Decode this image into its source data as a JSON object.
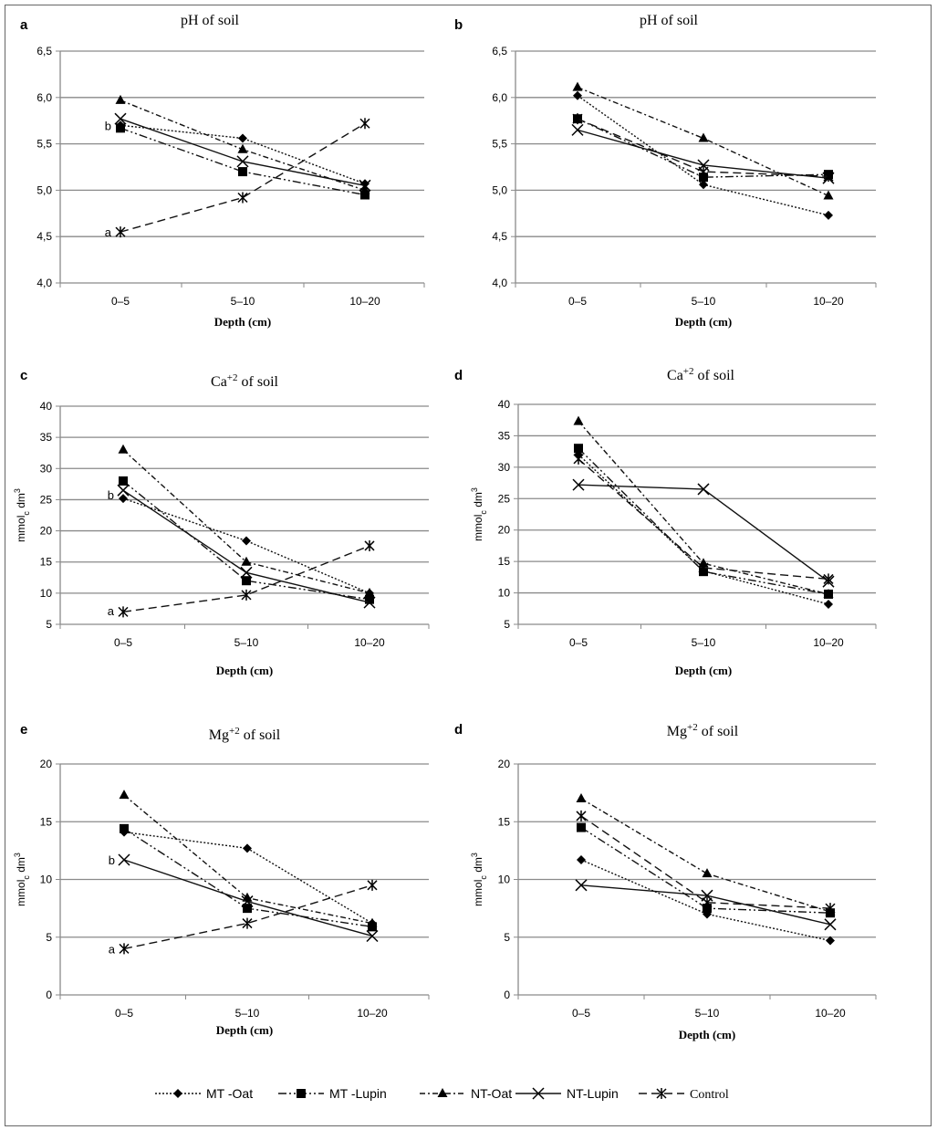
{
  "legend": [
    {
      "name": "MT -Oat",
      "marker": "diamond",
      "dash": "dotted"
    },
    {
      "name": "MT -Lupin",
      "marker": "square",
      "dash": "dash-dot-dot"
    },
    {
      "name": "NT-Oat",
      "marker": "triangle",
      "dash": "dash-dot"
    },
    {
      "name": "NT-Lupin",
      "marker": "x",
      "dash": "solid"
    },
    {
      "name": "Control",
      "marker": "asterisk",
      "dash": "dashed"
    }
  ],
  "chart_data": [
    {
      "type": "line",
      "panel_label": "a",
      "title": {
        "base": "pH of soil",
        "sup": "",
        "rest": ""
      },
      "xlabel": "Depth (cm)",
      "ylabel": null,
      "categories": [
        "0–5",
        "5–10",
        "10–20"
      ],
      "ylim": [
        4.0,
        6.5
      ],
      "yticks": [
        {
          "v": 4.0,
          "label": "4,0"
        },
        {
          "v": 4.5,
          "label": "4,5"
        },
        {
          "v": 5.0,
          "label": "5,0"
        },
        {
          "v": 5.5,
          "label": "5,5"
        },
        {
          "v": 6.0,
          "label": "6,0"
        },
        {
          "v": 6.5,
          "label": "6,5"
        }
      ],
      "grid": true,
      "series": [
        {
          "name": "MT -Oat",
          "values": [
            5.7,
            5.56,
            5.07
          ]
        },
        {
          "name": "MT -Lupin",
          "values": [
            5.67,
            5.2,
            4.95
          ]
        },
        {
          "name": "NT-Oat",
          "values": [
            5.97,
            5.44,
            5.0
          ]
        },
        {
          "name": "NT-Lupin",
          "values": [
            5.77,
            5.31,
            5.05
          ]
        },
        {
          "name": "Control",
          "values": [
            4.55,
            4.92,
            5.72
          ]
        }
      ],
      "annotations": [
        {
          "text": "b",
          "x": "0–5",
          "y": 5.7
        },
        {
          "text": "a",
          "x": "0–5",
          "y": 4.55
        }
      ]
    },
    {
      "type": "line",
      "panel_label": "b",
      "title": {
        "base": "pH of soil",
        "sup": "",
        "rest": ""
      },
      "xlabel": "Depth (cm)",
      "ylabel": null,
      "categories": [
        "0–5",
        "5–10",
        "10–20"
      ],
      "ylim": [
        4.0,
        6.5
      ],
      "yticks": [
        {
          "v": 4.0,
          "label": "4,0"
        },
        {
          "v": 4.5,
          "label": "4,5"
        },
        {
          "v": 5.0,
          "label": "5,0"
        },
        {
          "v": 5.5,
          "label": "5,5"
        },
        {
          "v": 6.0,
          "label": "6,0"
        },
        {
          "v": 6.5,
          "label": "6,5"
        }
      ],
      "grid": true,
      "series": [
        {
          "name": "MT -Oat",
          "values": [
            6.02,
            5.06,
            4.73
          ]
        },
        {
          "name": "MT -Lupin",
          "values": [
            5.77,
            5.14,
            5.17
          ]
        },
        {
          "name": "NT-Oat",
          "values": [
            6.11,
            5.56,
            4.94
          ]
        },
        {
          "name": "NT-Lupin",
          "values": [
            5.65,
            5.27,
            5.13
          ]
        },
        {
          "name": "Control",
          "values": [
            5.77,
            5.2,
            5.15
          ]
        }
      ],
      "annotations": []
    },
    {
      "type": "line",
      "panel_label": "c",
      "title": {
        "base": "Ca",
        "sup": "+2",
        "rest": " of soil"
      },
      "xlabel": "Depth (cm)",
      "ylabel": {
        "a": "mmol",
        "sub": "c",
        "b": " dm",
        "sup": "3"
      },
      "categories": [
        "0–5",
        "5–10",
        "10–20"
      ],
      "ylim": [
        5,
        40
      ],
      "yticks": [
        {
          "v": 5,
          "label": "5"
        },
        {
          "v": 10,
          "label": "10"
        },
        {
          "v": 15,
          "label": "15"
        },
        {
          "v": 20,
          "label": "20"
        },
        {
          "v": 25,
          "label": "25"
        },
        {
          "v": 30,
          "label": "30"
        },
        {
          "v": 35,
          "label": "35"
        },
        {
          "v": 40,
          "label": "40"
        }
      ],
      "grid": true,
      "series": [
        {
          "name": "MT -Oat",
          "values": [
            25.2,
            18.4,
            10.0
          ]
        },
        {
          "name": "MT -Lupin",
          "values": [
            28.0,
            12.0,
            9.0
          ]
        },
        {
          "name": "NT-Oat",
          "values": [
            33.0,
            15.0,
            10.0
          ]
        },
        {
          "name": "NT-Lupin",
          "values": [
            26.5,
            13.3,
            8.5
          ]
        },
        {
          "name": "Control",
          "values": [
            7.0,
            9.7,
            17.6
          ]
        }
      ],
      "annotations": [
        {
          "text": "b",
          "x": "0–5",
          "y": 25.8
        },
        {
          "text": "a",
          "x": "0–5",
          "y": 7.2
        }
      ]
    },
    {
      "type": "line",
      "panel_label": "d",
      "title": {
        "base": "Ca",
        "sup": "+2",
        "rest": " of soil"
      },
      "xlabel": "Depth (cm)",
      "ylabel": {
        "a": "mmol",
        "sub": "c",
        "b": " dm",
        "sup": "3"
      },
      "categories": [
        "0–5",
        "5–10",
        "10–20"
      ],
      "ylim": [
        5,
        40
      ],
      "yticks": [
        {
          "v": 5,
          "label": "5"
        },
        {
          "v": 10,
          "label": "10"
        },
        {
          "v": 15,
          "label": "15"
        },
        {
          "v": 20,
          "label": "20"
        },
        {
          "v": 25,
          "label": "25"
        },
        {
          "v": 30,
          "label": "30"
        },
        {
          "v": 35,
          "label": "35"
        },
        {
          "v": 40,
          "label": "40"
        }
      ],
      "grid": true,
      "series": [
        {
          "name": "MT -Oat",
          "values": [
            32.0,
            13.5,
            8.2
          ]
        },
        {
          "name": "MT -Lupin",
          "values": [
            33.0,
            13.4,
            9.8
          ]
        },
        {
          "name": "NT-Oat",
          "values": [
            37.3,
            14.7,
            9.8
          ]
        },
        {
          "name": "NT-Lupin",
          "values": [
            27.2,
            26.5,
            11.8
          ]
        },
        {
          "name": "Control",
          "values": [
            31.3,
            14.0,
            12.2
          ]
        }
      ],
      "annotations": []
    },
    {
      "type": "line",
      "panel_label": "e",
      "title": {
        "base": "Mg",
        "sup": "+2",
        "rest": " of soil"
      },
      "xlabel": "Depth (cm)",
      "ylabel": {
        "a": "mmol",
        "sub": "c",
        "b": " dm",
        "sup": "3"
      },
      "categories": [
        "0–5",
        "5–10",
        "10–20"
      ],
      "ylim": [
        0,
        20
      ],
      "yticks": [
        {
          "v": 0,
          "label": "0"
        },
        {
          "v": 5,
          "label": "5"
        },
        {
          "v": 10,
          "label": "10"
        },
        {
          "v": 15,
          "label": "15"
        },
        {
          "v": 20,
          "label": "20"
        }
      ],
      "grid": true,
      "series": [
        {
          "name": "MT -Oat",
          "values": [
            14.1,
            12.7,
            6.2
          ]
        },
        {
          "name": "MT -Lupin",
          "values": [
            14.4,
            7.5,
            5.9
          ]
        },
        {
          "name": "NT-Oat",
          "values": [
            17.3,
            8.4,
            6.2
          ]
        },
        {
          "name": "NT-Lupin",
          "values": [
            11.7,
            8.1,
            5.1
          ]
        },
        {
          "name": "Control",
          "values": [
            4.0,
            6.2,
            9.5
          ]
        }
      ],
      "annotations": [
        {
          "text": "b",
          "x": "0–5",
          "y": 11.7
        },
        {
          "text": "a",
          "x": "0–5",
          "y": 4.0
        }
      ]
    },
    {
      "type": "line",
      "panel_label": "d",
      "title": {
        "base": "Mg",
        "sup": "+2",
        "rest": " of soil"
      },
      "xlabel": "Depth (cm)",
      "ylabel": {
        "a": "mmol",
        "sub": "c",
        "b": " dm",
        "sup": "3"
      },
      "categories": [
        "0–5",
        "5–10",
        "10–20"
      ],
      "ylim": [
        0,
        20
      ],
      "yticks": [
        {
          "v": 0,
          "label": "0"
        },
        {
          "v": 5,
          "label": "5"
        },
        {
          "v": 10,
          "label": "10"
        },
        {
          "v": 15,
          "label": "15"
        },
        {
          "v": 20,
          "label": "20"
        }
      ],
      "grid": true,
      "series": [
        {
          "name": "MT -Oat",
          "values": [
            11.7,
            7.0,
            4.7
          ]
        },
        {
          "name": "MT -Lupin",
          "values": [
            14.5,
            7.5,
            7.1
          ]
        },
        {
          "name": "NT-Oat",
          "values": [
            17.0,
            10.5,
            7.2
          ]
        },
        {
          "name": "NT-Lupin",
          "values": [
            9.5,
            8.6,
            6.1
          ]
        },
        {
          "name": "Control",
          "values": [
            15.5,
            8.0,
            7.5
          ]
        }
      ],
      "annotations": []
    }
  ]
}
